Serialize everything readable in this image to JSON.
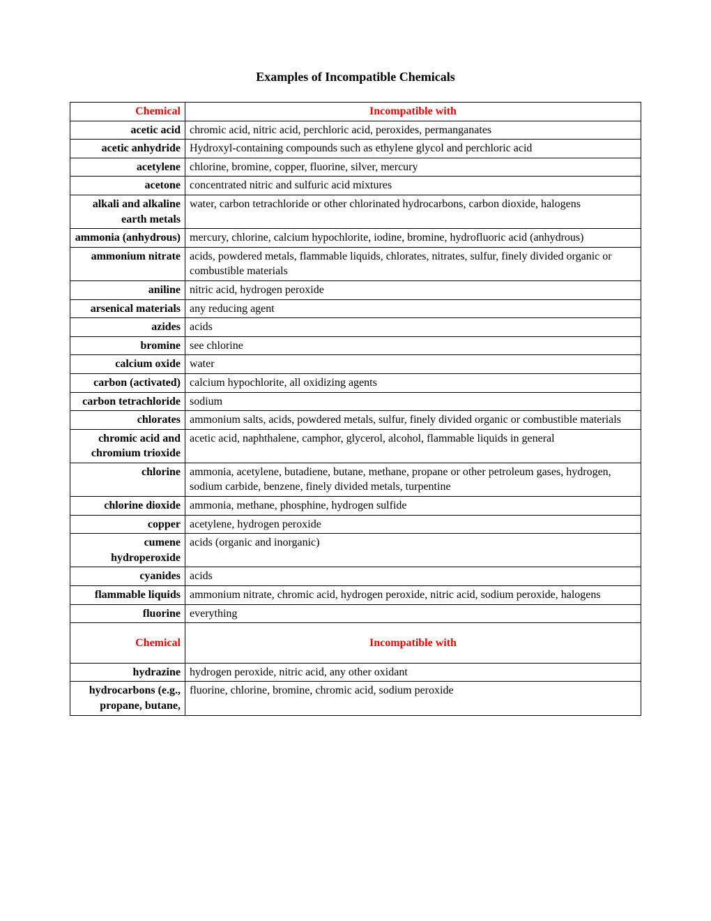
{
  "title": "Examples of Incompatible Chemicals",
  "headers": {
    "chemical": "Chemical",
    "incompatible": "Incompatible with"
  },
  "rows1": [
    {
      "chemical": "acetic acid",
      "incompatible": "chromic acid, nitric acid, perchloric acid, peroxides, permanganates"
    },
    {
      "chemical": "acetic anhydride",
      "incompatible": "Hydroxyl-containing compounds such as ethylene glycol and perchloric acid"
    },
    {
      "chemical": "acetylene",
      "incompatible": "chlorine, bromine, copper, fluorine, silver, mercury"
    },
    {
      "chemical": "acetone",
      "incompatible": "concentrated nitric and sulfuric acid mixtures"
    },
    {
      "chemical": "alkali and alkaline earth metals",
      "incompatible": "water, carbon tetrachloride or other chlorinated hydrocarbons, carbon dioxide, halogens"
    },
    {
      "chemical": "ammonia (anhydrous)",
      "incompatible": "mercury, chlorine, calcium hypochlorite, iodine, bromine, hydrofluoric acid (anhydrous)"
    },
    {
      "chemical": "ammonium nitrate",
      "incompatible": "acids, powdered metals, flammable liquids, chlorates, nitrates, sulfur, finely divided organic or combustible materials"
    },
    {
      "chemical": "aniline",
      "incompatible": "nitric acid, hydrogen peroxide"
    },
    {
      "chemical": "arsenical materials",
      "incompatible": "any reducing agent"
    },
    {
      "chemical": "azides",
      "incompatible": "acids"
    },
    {
      "chemical": "bromine",
      "incompatible": "see chlorine"
    },
    {
      "chemical": "calcium oxide",
      "incompatible": "water"
    },
    {
      "chemical": "carbon (activated)",
      "incompatible": "calcium hypochlorite, all oxidizing agents"
    },
    {
      "chemical": "carbon tetrachloride",
      "incompatible": "sodium"
    },
    {
      "chemical": "chlorates",
      "incompatible": "ammonium salts, acids, powdered metals, sulfur, finely divided organic or combustible materials"
    },
    {
      "chemical": "chromic acid and chromium trioxide",
      "incompatible": "acetic acid, naphthalene, camphor, glycerol, alcohol, flammable liquids in general"
    },
    {
      "chemical": "chlorine",
      "incompatible": "ammonia, acetylene, butadiene, butane, methane, propane or other petroleum gases, hydrogen, sodium carbide, benzene, finely divided metals, turpentine"
    },
    {
      "chemical": "chlorine dioxide",
      "incompatible": "ammonia, methane, phosphine, hydrogen sulfide"
    },
    {
      "chemical": "copper",
      "incompatible": "acetylene, hydrogen peroxide"
    },
    {
      "chemical": "cumene hydroperoxide",
      "incompatible": "acids (organic and inorganic)"
    },
    {
      "chemical": "cyanides",
      "incompatible": "acids"
    },
    {
      "chemical": "flammable liquids",
      "incompatible": "ammonium nitrate, chromic acid, hydrogen peroxide, nitric acid, sodium peroxide, halogens"
    },
    {
      "chemical": "fluorine",
      "incompatible": "everything"
    }
  ],
  "rows2": [
    {
      "chemical": "hydrazine",
      "incompatible": "hydrogen peroxide, nitric acid, any other oxidant"
    },
    {
      "chemical": "hydrocarbons (e.g., propane, butane,",
      "incompatible": "fluorine, chlorine, bromine, chromic acid, sodium peroxide"
    }
  ]
}
